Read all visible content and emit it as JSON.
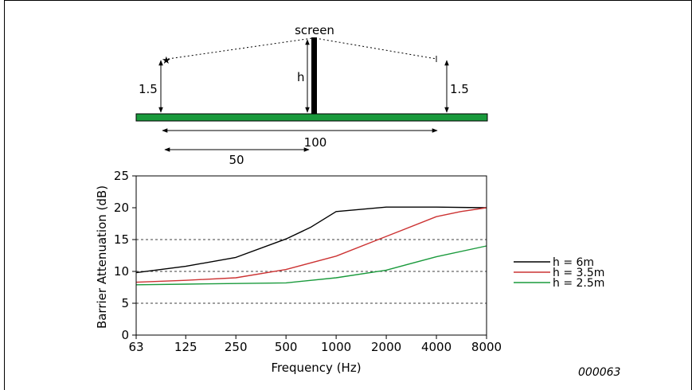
{
  "figure_id": "000063",
  "diagram": {
    "screen_label": "screen",
    "h_label": "h",
    "source_height_label": "1.5",
    "receiver_height_label": "1.5",
    "total_distance_label": "100",
    "screen_distance_label": "50",
    "ground_color": "#1a9a3c",
    "screen_color": "#000000"
  },
  "chart_data": {
    "type": "line",
    "xscale": "log",
    "x": [
      63,
      125,
      250,
      500,
      1000,
      2000,
      4000,
      8000
    ],
    "xtick_labels": [
      "63",
      "125",
      "250",
      "500",
      "1000",
      "2000",
      "4000",
      "8000"
    ],
    "xlabel": "Frequency (Hz)",
    "ylabel": "Barrier Attenuation (dB)",
    "ylim": [
      0,
      25
    ],
    "yticks": [
      0,
      5,
      10,
      15,
      20,
      25
    ],
    "ytick_labels": [
      "0",
      "5",
      "10",
      "15",
      "20",
      "25"
    ],
    "grid": "dashed horizontal at 5, 10, 15",
    "legend_position": "right",
    "series": [
      {
        "name": "h = 6m",
        "color": "#000000",
        "x": [
          63,
          125,
          250,
          500,
          700,
          1000,
          2000,
          4000,
          8000
        ],
        "values": [
          9.8,
          10.8,
          12.2,
          15.1,
          16.9,
          19.4,
          20.1,
          20.1,
          20.0
        ]
      },
      {
        "name": "h = 3.5m",
        "color": "#cc3333",
        "x": [
          63,
          125,
          250,
          500,
          1000,
          2000,
          4000,
          5600,
          8000
        ],
        "values": [
          8.3,
          8.6,
          9.0,
          10.3,
          12.4,
          15.5,
          18.6,
          19.4,
          20.0
        ]
      },
      {
        "name": "h = 2.5m",
        "color": "#1a9a3c",
        "x": [
          63,
          125,
          250,
          500,
          1000,
          2000,
          4000,
          8000
        ],
        "values": [
          7.9,
          8.0,
          8.1,
          8.2,
          9.0,
          10.2,
          12.3,
          14.0
        ]
      }
    ]
  }
}
